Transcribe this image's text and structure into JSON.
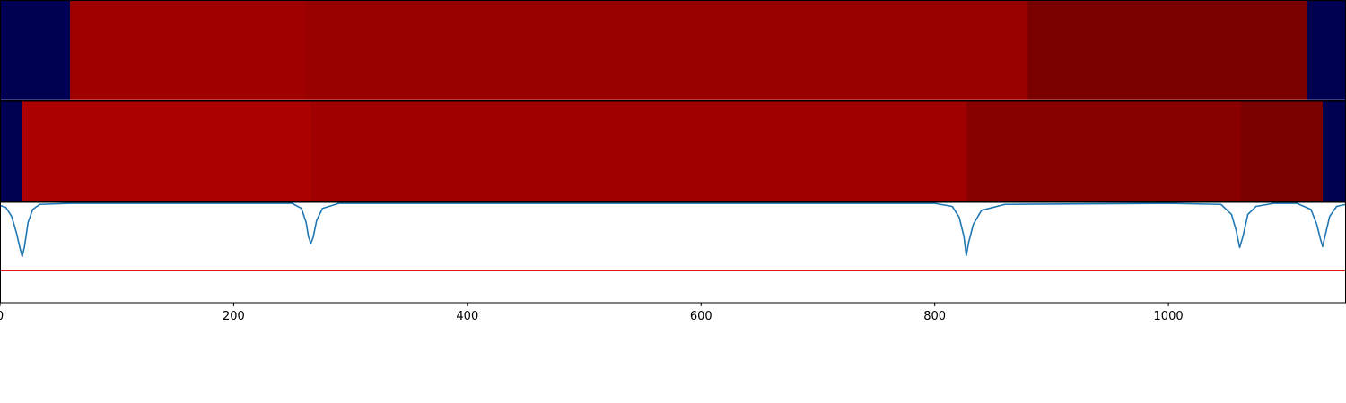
{
  "chart_data": [
    {
      "type": "heatmap",
      "panel": "segments-top",
      "xlim": [
        0,
        1152
      ],
      "segments": [
        {
          "start": 0,
          "end": 60,
          "color": "#000050"
        },
        {
          "start": 60,
          "end": 261,
          "color": "#a00000"
        },
        {
          "start": 261,
          "end": 879,
          "color": "#990000"
        },
        {
          "start": 879,
          "end": 1119,
          "color": "#7b0000"
        },
        {
          "start": 1119,
          "end": 1152,
          "color": "#000050"
        }
      ]
    },
    {
      "type": "heatmap",
      "panel": "segments-bottom",
      "xlim": [
        0,
        1152
      ],
      "segments": [
        {
          "start": 0,
          "end": 19,
          "color": "#000050"
        },
        {
          "start": 19,
          "end": 266,
          "color": "#ad0000"
        },
        {
          "start": 266,
          "end": 827,
          "color": "#a10000"
        },
        {
          "start": 827,
          "end": 1062,
          "color": "#880000"
        },
        {
          "start": 1062,
          "end": 1132,
          "color": "#7b0000"
        },
        {
          "start": 1132,
          "end": 1152,
          "color": "#000050"
        }
      ]
    },
    {
      "type": "line",
      "panel": "signal",
      "xlim": [
        0,
        1152
      ],
      "ylim": [
        0,
        1
      ],
      "xticks": [
        0,
        200,
        400,
        600,
        800,
        1000
      ],
      "threshold": {
        "y": 0.32,
        "color": "#e41a1c"
      },
      "series": [
        {
          "color": "#1f77b4",
          "baseline": 0.99,
          "dips": [
            {
              "x": 19,
              "depth": 0.53
            },
            {
              "x": 266,
              "depth": 0.4
            },
            {
              "x": 827,
              "depth": 0.52
            },
            {
              "x": 1061,
              "depth": 0.44
            },
            {
              "x": 1132,
              "depth": 0.43
            }
          ],
          "x": [
            0,
            5,
            10,
            14,
            17,
            19,
            21,
            24,
            28,
            34,
            60,
            200,
            250,
            258,
            262,
            264,
            266,
            268,
            271,
            276,
            290,
            500,
            800,
            815,
            821,
            825,
            827,
            829,
            833,
            840,
            860,
            1000,
            1045,
            1054,
            1058,
            1061,
            1064,
            1068,
            1075,
            1090,
            1110,
            1122,
            1127,
            1130,
            1132,
            1134,
            1138,
            1144,
            1152
          ],
          "y": [
            0.97,
            0.95,
            0.86,
            0.7,
            0.55,
            0.46,
            0.56,
            0.8,
            0.93,
            0.98,
            0.99,
            0.99,
            0.99,
            0.94,
            0.8,
            0.66,
            0.59,
            0.65,
            0.82,
            0.94,
            0.99,
            0.99,
            0.99,
            0.96,
            0.85,
            0.66,
            0.47,
            0.6,
            0.78,
            0.92,
            0.98,
            0.99,
            0.98,
            0.88,
            0.72,
            0.55,
            0.67,
            0.88,
            0.96,
            0.99,
            0.99,
            0.93,
            0.78,
            0.64,
            0.56,
            0.66,
            0.86,
            0.96,
            0.98
          ]
        }
      ]
    }
  ]
}
